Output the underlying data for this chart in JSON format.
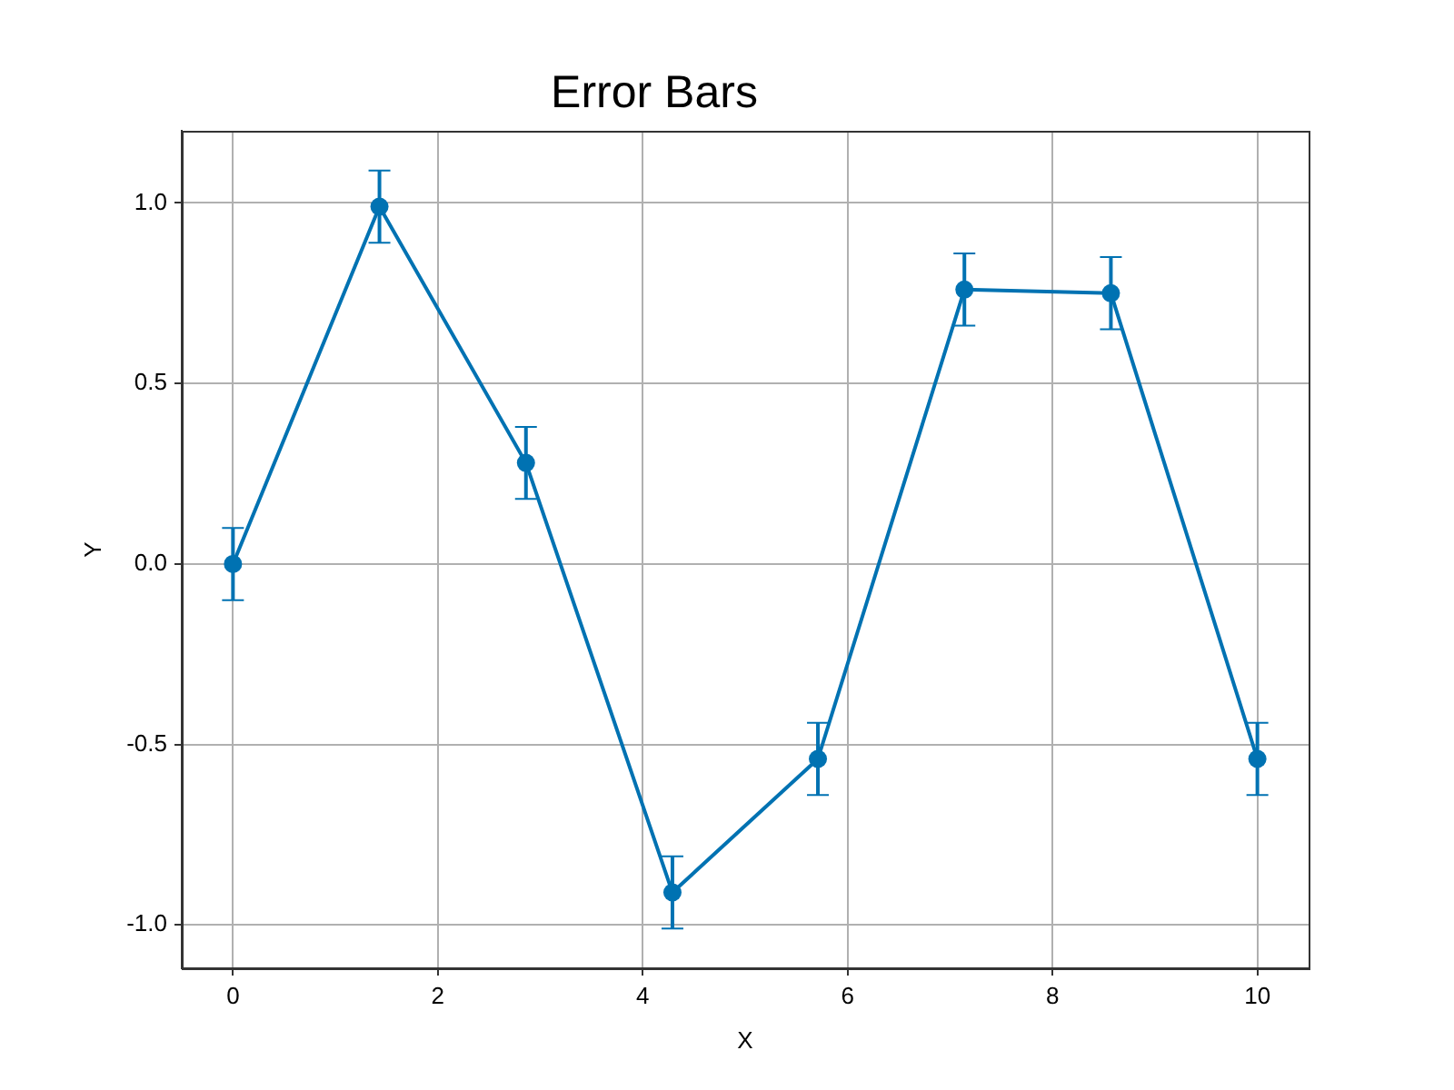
{
  "chart_data": {
    "type": "line",
    "title": "Error Bars",
    "xlabel": "X",
    "ylabel": "Y",
    "x": [
      0,
      1.43,
      2.86,
      4.29,
      5.71,
      7.14,
      8.57,
      10
    ],
    "series": [
      {
        "color": "#0072b2",
        "values": [
          0,
          0.99,
          0.28,
          -0.91,
          -0.54,
          0.76,
          0.75,
          -0.54
        ],
        "errors": [
          0.1,
          0.1,
          0.1,
          0.1,
          0.1,
          0.1,
          0.1,
          0.1
        ]
      }
    ],
    "xlim": [
      -0.5,
      10.5
    ],
    "ylim": [
      -1.12,
      1.2
    ],
    "xticks": [
      0,
      2,
      4,
      6,
      8,
      10
    ],
    "yticks": [
      {
        "value": -1,
        "label": "-1.0"
      },
      -0.5,
      {
        "value": 0,
        "label": "0.0"
      },
      0.5,
      {
        "value": 1,
        "label": "1.0"
      }
    ],
    "grid": true,
    "marker": "circle",
    "line_style": "solid"
  }
}
